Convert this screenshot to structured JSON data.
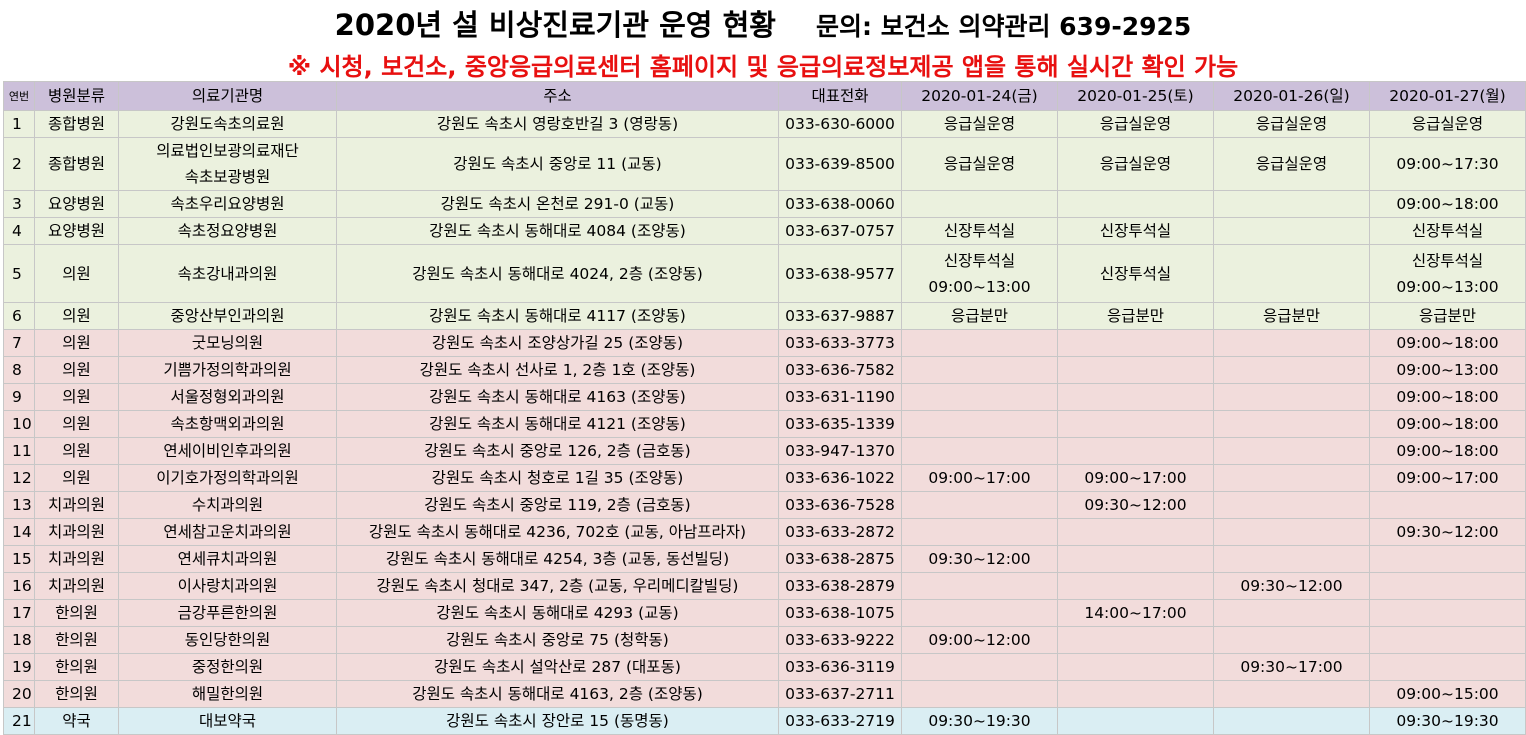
{
  "header": {
    "title": "2020년 설 비상진료기관 운영 현황",
    "contact": "문의: 보건소 의약관리 639-2925",
    "notice": "※ 시청, 보건소, 중앙응급의료센터 홈페이지 및 응급의료정보제공 앱을 통해 실시간 확인 가능"
  },
  "table": {
    "columns": [
      "연번",
      "병원분류",
      "의료기관명",
      "주소",
      "대표전화",
      "2020-01-24(금)",
      "2020-01-25(토)",
      "2020-01-26(일)",
      "2020-01-27(월)"
    ],
    "rows": [
      {
        "no": "1",
        "type": "종합병원",
        "name": [
          "강원도속초의료원"
        ],
        "addr": "강원도 속초시 영랑호반길 3 (영랑동)",
        "phone": "033-630-6000",
        "d24": [
          "응급실운영"
        ],
        "d25": [
          "응급실운영"
        ],
        "d26": [
          "응급실운영"
        ],
        "d27": [
          "응급실운영"
        ]
      },
      {
        "no": "2",
        "type": "종합병원",
        "name": [
          "의료법인보광의료재단",
          "속초보광병원"
        ],
        "addr": "강원도 속초시 중앙로 11 (교동)",
        "phone": "033-639-8500",
        "d24": [
          "응급실운영"
        ],
        "d25": [
          "응급실운영"
        ],
        "d26": [
          "응급실운영"
        ],
        "d27": [
          "09:00~17:30"
        ]
      },
      {
        "no": "3",
        "type": "요양병원",
        "name": [
          "속초우리요양병원"
        ],
        "addr": "강원도 속초시 온천로 291-0 (교동)",
        "phone": "033-638-0060",
        "d24": [],
        "d25": [],
        "d26": [],
        "d27": [
          "09:00~18:00"
        ]
      },
      {
        "no": "4",
        "type": "요양병원",
        "name": [
          "속초정요양병원"
        ],
        "addr": "강원도 속초시 동해대로 4084 (조양동)",
        "phone": "033-637-0757",
        "d24": [
          "신장투석실"
        ],
        "d25": [
          "신장투석실"
        ],
        "d26": [],
        "d27": [
          "신장투석실"
        ]
      },
      {
        "no": "5",
        "type": "의원",
        "name": [
          "속초강내과의원"
        ],
        "addr": "강원도 속초시 동해대로 4024, 2층 (조양동)",
        "phone": "033-638-9577",
        "d24": [
          "신장투석실",
          "09:00~13:00"
        ],
        "d25": [
          "신장투석실"
        ],
        "d26": [],
        "d27": [
          "신장투석실",
          "09:00~13:00"
        ]
      },
      {
        "no": "6",
        "type": "의원",
        "name": [
          "중앙산부인과의원"
        ],
        "addr": "강원도 속초시 동해대로 4117 (조양동)",
        "phone": "033-637-9887",
        "d24": [
          "응급분만"
        ],
        "d25": [
          "응급분만"
        ],
        "d26": [
          "응급분만"
        ],
        "d27": [
          "응급분만"
        ]
      },
      {
        "no": "7",
        "type": "의원",
        "name": [
          "굿모닝의원"
        ],
        "addr": "강원도 속초시 조양상가길 25 (조양동)",
        "phone": "033-633-3773",
        "d24": [],
        "d25": [],
        "d26": [],
        "d27": [
          "09:00~18:00"
        ]
      },
      {
        "no": "8",
        "type": "의원",
        "name": [
          "기쁨가정의학과의원"
        ],
        "addr": "강원도 속초시 선사로 1, 2층 1호 (조양동)",
        "phone": "033-636-7582",
        "d24": [],
        "d25": [],
        "d26": [],
        "d27": [
          "09:00~13:00"
        ]
      },
      {
        "no": "9",
        "type": "의원",
        "name": [
          "서울정형외과의원"
        ],
        "addr": "강원도 속초시 동해대로 4163 (조양동)",
        "phone": "033-631-1190",
        "d24": [],
        "d25": [],
        "d26": [],
        "d27": [
          "09:00~18:00"
        ]
      },
      {
        "no": "10",
        "type": "의원",
        "name": [
          "속초항맥외과의원"
        ],
        "addr": "강원도 속초시 동해대로 4121 (조양동)",
        "phone": "033-635-1339",
        "d24": [],
        "d25": [],
        "d26": [],
        "d27": [
          "09:00~18:00"
        ]
      },
      {
        "no": "11",
        "type": "의원",
        "name": [
          "연세이비인후과의원"
        ],
        "addr": "강원도 속초시 중앙로 126, 2층 (금호동)",
        "phone": "033-947-1370",
        "d24": [],
        "d25": [],
        "d26": [],
        "d27": [
          "09:00~18:00"
        ]
      },
      {
        "no": "12",
        "type": "의원",
        "name": [
          "이기호가정의학과의원"
        ],
        "addr": "강원도 속초시 청호로 1길 35 (조양동)",
        "phone": "033-636-1022",
        "d24": [
          "09:00~17:00"
        ],
        "d25": [
          "09:00~17:00"
        ],
        "d26": [],
        "d27": [
          "09:00~17:00"
        ]
      },
      {
        "no": "13",
        "type": "치과의원",
        "name": [
          "수치과의원"
        ],
        "addr": "강원도 속초시 중앙로 119, 2층 (금호동)",
        "phone": "033-636-7528",
        "d24": [],
        "d25": [
          "09:30~12:00"
        ],
        "d26": [],
        "d27": []
      },
      {
        "no": "14",
        "type": "치과의원",
        "name": [
          "연세참고운치과의원"
        ],
        "addr": "강원도 속초시 동해대로 4236, 702호 (교동, 아남프라자)",
        "phone": "033-633-2872",
        "d24": [],
        "d25": [],
        "d26": [],
        "d27": [
          "09:30~12:00"
        ]
      },
      {
        "no": "15",
        "type": "치과의원",
        "name": [
          "연세큐치과의원"
        ],
        "addr": "강원도 속초시 동해대로 4254, 3층 (교동, 동선빌딩)",
        "phone": "033-638-2875",
        "d24": [
          "09:30~12:00"
        ],
        "d25": [],
        "d26": [],
        "d27": []
      },
      {
        "no": "16",
        "type": "치과의원",
        "name": [
          "이사랑치과의원"
        ],
        "addr": "강원도 속초시 청대로 347, 2층 (교동, 우리메디칼빌딩)",
        "phone": "033-638-2879",
        "d24": [],
        "d25": [],
        "d26": [
          "09:30~12:00"
        ],
        "d27": []
      },
      {
        "no": "17",
        "type": "한의원",
        "name": [
          "금강푸른한의원"
        ],
        "addr": "강원도 속초시 동해대로 4293 (교동)",
        "phone": "033-638-1075",
        "d24": [],
        "d25": [
          "14:00~17:00"
        ],
        "d26": [],
        "d27": []
      },
      {
        "no": "18",
        "type": "한의원",
        "name": [
          "동인당한의원"
        ],
        "addr": "강원도 속초시 중앙로 75 (청학동)",
        "phone": "033-633-9222",
        "d24": [
          "09:00~12:00"
        ],
        "d25": [],
        "d26": [],
        "d27": []
      },
      {
        "no": "19",
        "type": "한의원",
        "name": [
          "중정한의원"
        ],
        "addr": "강원도 속초시 설악산로 287 (대포동)",
        "phone": "033-636-3119",
        "d24": [],
        "d25": [],
        "d26": [
          "09:30~17:00"
        ],
        "d27": []
      },
      {
        "no": "20",
        "type": "한의원",
        "name": [
          "해밀한의원"
        ],
        "addr": "강원도 속초시 동해대로 4163, 2층 (조양동)",
        "phone": "033-637-2711",
        "d24": [],
        "d25": [],
        "d26": [],
        "d27": [
          "09:00~15:00"
        ]
      },
      {
        "no": "21",
        "type": "약국",
        "name": [
          "대보약국"
        ],
        "addr": "강원도 속초시 장안로 15 (동명동)",
        "phone": "033-633-2719",
        "d24": [
          "09:30~19:30"
        ],
        "d25": [],
        "d26": [],
        "d27": [
          "09:30~19:30"
        ]
      }
    ]
  },
  "colors": {
    "header_bg": "#ccc0da",
    "hospital_bg": "#ebf1de",
    "clinic_bg": "#f2dcdb",
    "pharmacy_bg": "#daeef3",
    "notice_color": "#e81010"
  }
}
